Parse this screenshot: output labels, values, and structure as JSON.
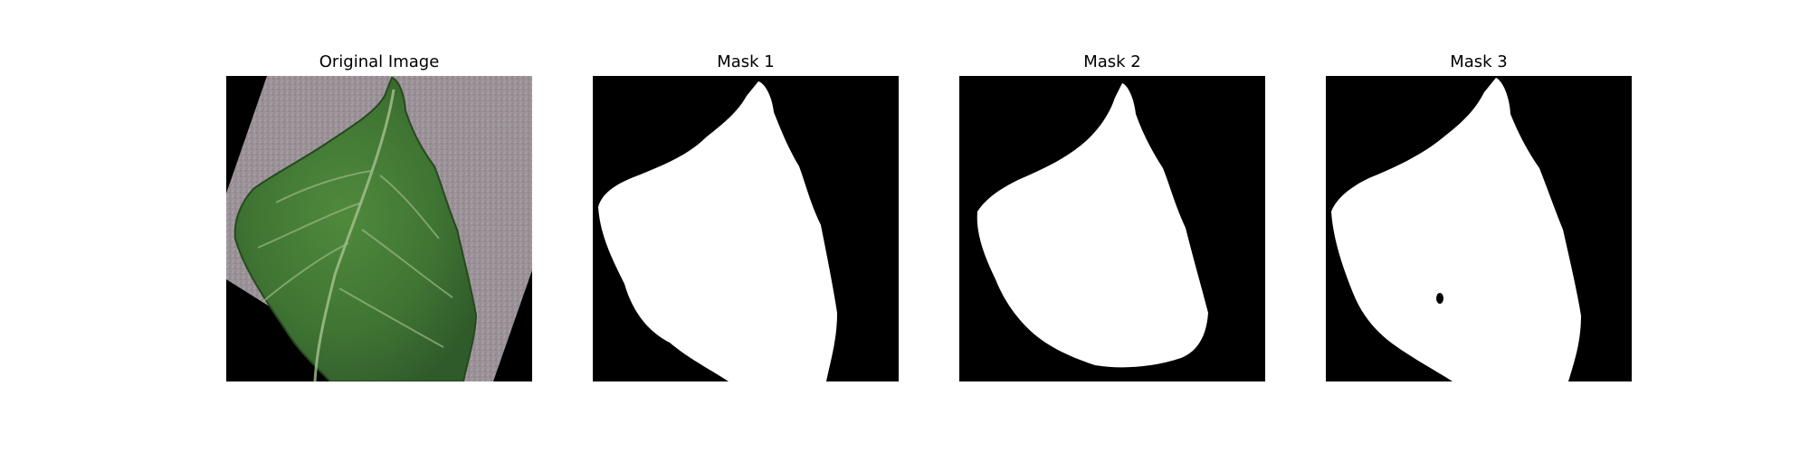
{
  "figure": {
    "panels": [
      {
        "title": "Original Image",
        "kind": "photo",
        "subject": "leaf-photo"
      },
      {
        "title": "Mask 1",
        "kind": "mask"
      },
      {
        "title": "Mask 2",
        "kind": "mask"
      },
      {
        "title": "Mask 3",
        "kind": "mask"
      }
    ]
  },
  "colors": {
    "background": "#000000",
    "mask_foreground": "#ffffff",
    "leaf_dark": "#2f5a2a",
    "leaf_light": "#4f8a3c",
    "backdrop_gray": "#9b9298"
  }
}
